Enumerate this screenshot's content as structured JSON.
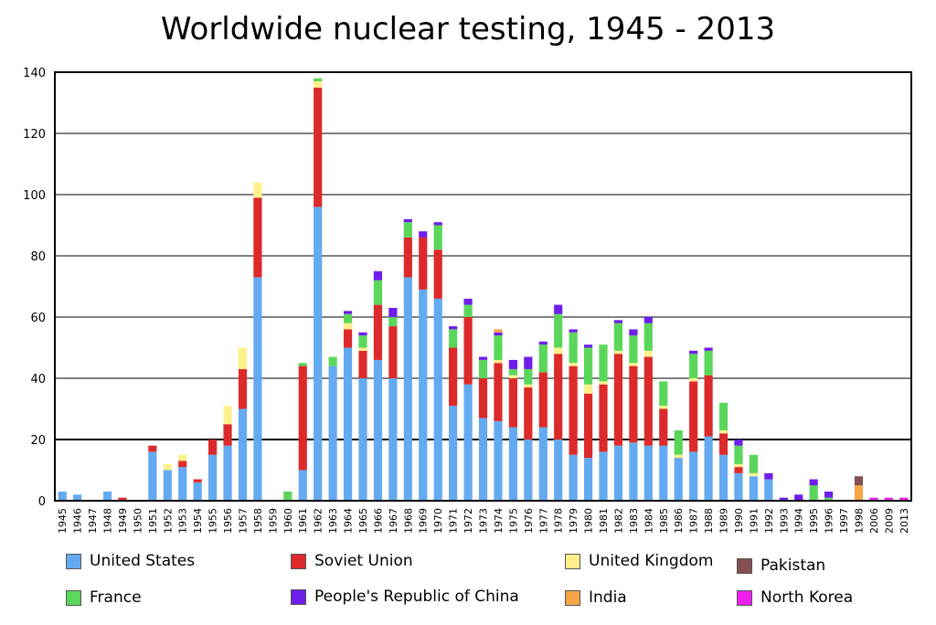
{
  "chart_data": {
    "type": "bar",
    "stacked": true,
    "title": "Worldwide nuclear testing, 1945 - 2013",
    "xlabel": "",
    "ylabel": "",
    "ylim": [
      0,
      140
    ],
    "yticks": [
      0,
      20,
      40,
      60,
      80,
      100,
      120,
      140
    ],
    "grid": true,
    "legend_position": "bottom",
    "categories": [
      "1945",
      "1946",
      "1947",
      "1948",
      "1949",
      "1950",
      "1951",
      "1952",
      "1953",
      "1954",
      "1955",
      "1956",
      "1957",
      "1958",
      "1959",
      "1960",
      "1961",
      "1962",
      "1963",
      "1964",
      "1965",
      "1966",
      "1967",
      "1968",
      "1969",
      "1970",
      "1971",
      "1972",
      "1973",
      "1974",
      "1975",
      "1976",
      "1977",
      "1978",
      "1979",
      "1980",
      "1981",
      "1982",
      "1983",
      "1984",
      "1985",
      "1986",
      "1987",
      "1988",
      "1989",
      "1990",
      "1991",
      "1992",
      "1993",
      "1994",
      "1995",
      "1996",
      "1997",
      "1998",
      "2006",
      "2009",
      "2013"
    ],
    "series": [
      {
        "name": "United States",
        "color": "#64aaf0",
        "values": [
          3,
          2,
          0,
          3,
          0,
          0,
          16,
          10,
          11,
          6,
          15,
          18,
          30,
          73,
          0,
          0,
          10,
          96,
          44,
          50,
          40,
          46,
          40,
          73,
          69,
          66,
          31,
          38,
          27,
          26,
          24,
          20,
          24,
          20,
          15,
          14,
          16,
          18,
          19,
          18,
          18,
          14,
          16,
          21,
          15,
          9,
          8,
          7,
          0,
          0,
          0,
          0,
          0,
          0,
          0,
          0,
          0
        ]
      },
      {
        "name": "Soviet Union",
        "color": "#dc2a2a",
        "values": [
          0,
          0,
          0,
          0,
          1,
          0,
          2,
          0,
          2,
          1,
          5,
          7,
          13,
          26,
          0,
          0,
          34,
          39,
          0,
          6,
          9,
          18,
          17,
          13,
          17,
          16,
          19,
          22,
          13,
          19,
          16,
          17,
          18,
          28,
          29,
          21,
          22,
          30,
          25,
          29,
          12,
          0,
          23,
          20,
          7,
          2,
          0,
          0,
          0,
          0,
          0,
          0,
          0,
          0,
          0,
          0,
          0
        ]
      },
      {
        "name": "United Kingdom",
        "color": "#fff08c",
        "values": [
          0,
          0,
          0,
          0,
          0,
          0,
          0,
          2,
          2,
          0,
          0,
          6,
          7,
          5,
          0,
          0,
          0,
          2,
          0,
          2,
          1,
          0,
          0,
          0,
          0,
          0,
          0,
          0,
          0,
          1,
          1,
          1,
          0,
          2,
          1,
          3,
          1,
          1,
          1,
          2,
          1,
          1,
          1,
          0,
          1,
          1,
          1,
          0,
          0,
          0,
          0,
          0,
          0,
          0,
          0,
          0,
          0
        ]
      },
      {
        "name": "France",
        "color": "#5ad75a",
        "values": [
          0,
          0,
          0,
          0,
          0,
          0,
          0,
          0,
          0,
          0,
          0,
          0,
          0,
          0,
          0,
          3,
          1,
          1,
          3,
          3,
          4,
          8,
          3,
          5,
          0,
          8,
          6,
          4,
          6,
          8,
          2,
          5,
          9,
          11,
          10,
          12,
          12,
          9,
          9,
          9,
          8,
          8,
          8,
          8,
          9,
          6,
          6,
          0,
          0,
          0,
          5,
          1,
          0,
          0,
          0,
          0,
          0
        ]
      },
      {
        "name": "People's Republic of China",
        "color": "#6e1eeb",
        "values": [
          0,
          0,
          0,
          0,
          0,
          0,
          0,
          0,
          0,
          0,
          0,
          0,
          0,
          0,
          0,
          0,
          0,
          0,
          0,
          1,
          1,
          3,
          3,
          1,
          2,
          1,
          1,
          2,
          1,
          1,
          3,
          4,
          1,
          3,
          1,
          1,
          0,
          1,
          2,
          2,
          0,
          0,
          1,
          1,
          0,
          2,
          0,
          2,
          1,
          2,
          2,
          2,
          0,
          0,
          0,
          0,
          0
        ]
      },
      {
        "name": "India",
        "color": "#f5a546",
        "values": [
          0,
          0,
          0,
          0,
          0,
          0,
          0,
          0,
          0,
          0,
          0,
          0,
          0,
          0,
          0,
          0,
          0,
          0,
          0,
          0,
          0,
          0,
          0,
          0,
          0,
          0,
          0,
          0,
          0,
          1,
          0,
          0,
          0,
          0,
          0,
          0,
          0,
          0,
          0,
          0,
          0,
          0,
          0,
          0,
          0,
          0,
          0,
          0,
          0,
          0,
          0,
          0,
          0,
          5,
          0,
          0,
          0
        ]
      },
      {
        "name": "Pakistan",
        "color": "#825050",
        "values": [
          0,
          0,
          0,
          0,
          0,
          0,
          0,
          0,
          0,
          0,
          0,
          0,
          0,
          0,
          0,
          0,
          0,
          0,
          0,
          0,
          0,
          0,
          0,
          0,
          0,
          0,
          0,
          0,
          0,
          0,
          0,
          0,
          0,
          0,
          0,
          0,
          0,
          0,
          0,
          0,
          0,
          0,
          0,
          0,
          0,
          0,
          0,
          0,
          0,
          0,
          0,
          0,
          0,
          3,
          0,
          0,
          0
        ]
      },
      {
        "name": "North Korea",
        "color": "#f01ef0",
        "values": [
          0,
          0,
          0,
          0,
          0,
          0,
          0,
          0,
          0,
          0,
          0,
          0,
          0,
          0,
          0,
          0,
          0,
          0,
          0,
          0,
          0,
          0,
          0,
          0,
          0,
          0,
          0,
          0,
          0,
          0,
          0,
          0,
          0,
          0,
          0,
          0,
          0,
          0,
          0,
          0,
          0,
          0,
          0,
          0,
          0,
          0,
          0,
          0,
          0,
          0,
          0,
          0,
          0,
          0,
          1,
          1,
          1
        ]
      }
    ]
  },
  "legend": [
    {
      "label": "United States",
      "color": "#64aaf0"
    },
    {
      "label": "Soviet Union",
      "color": "#dc2a2a"
    },
    {
      "label": "United Kingdom",
      "color": "#fff08c"
    },
    {
      "label": "Pakistan",
      "color": "#825050"
    },
    {
      "label": "France",
      "color": "#5ad75a"
    },
    {
      "label": "People's Republic of China",
      "color": "#6e1eeb"
    },
    {
      "label": "India",
      "color": "#f5a546"
    },
    {
      "label": "North Korea",
      "color": "#f01ef0"
    }
  ]
}
